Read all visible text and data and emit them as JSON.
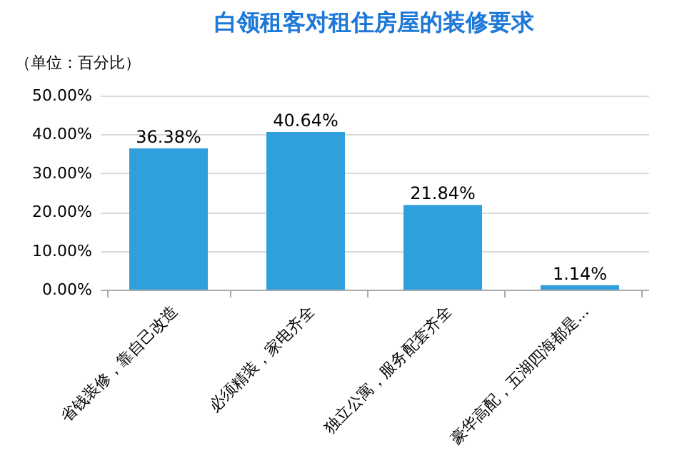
{
  "chart_data": {
    "type": "bar",
    "title": "白领租客对租住房屋的装修要求",
    "ylabel": "（单位：百分比）",
    "categories": [
      "省钱装修，靠自己改造",
      "必须精装，家电齐全",
      "独立公寓，服务配套齐全",
      "豪华高配，五湖四海都是..."
    ],
    "values": [
      36.38,
      40.64,
      21.84,
      1.14
    ],
    "color": "#2fa0dc",
    "value_labels": [
      "36.38%",
      "40.64%",
      "21.84%",
      "1.14%"
    ],
    "ylim": [
      0,
      50
    ],
    "yticks": [
      {
        "value": 0,
        "label": "0.00%"
      },
      {
        "value": 10,
        "label": "10.00%"
      },
      {
        "value": 20,
        "label": "20.00%"
      },
      {
        "value": 30,
        "label": "30.00%"
      },
      {
        "value": 40,
        "label": "40.00%"
      },
      {
        "value": 50,
        "label": "50.00%"
      }
    ],
    "grid": "y"
  }
}
